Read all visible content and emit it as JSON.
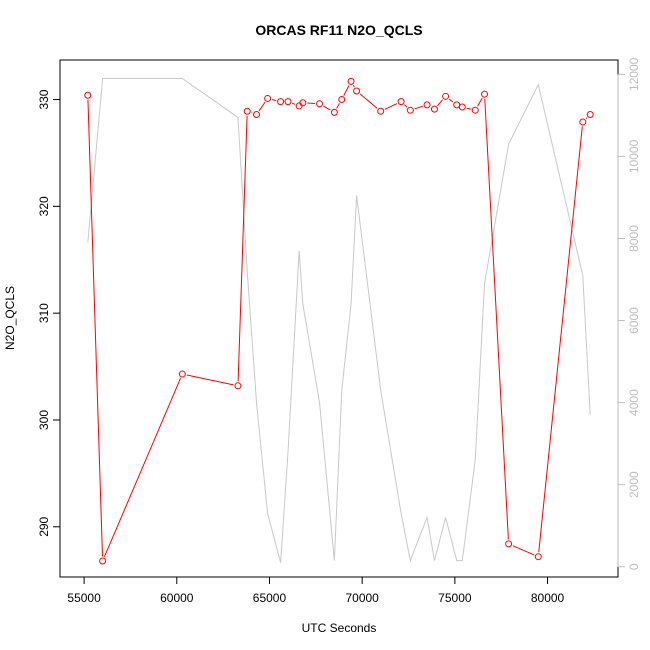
{
  "chart_data": {
    "type": "line",
    "title": "ORCAS RF11 N2O_QCLS",
    "xlabel": "UTC Seconds",
    "ylabel": "N2O_QCLS",
    "x_ticks": [
      55000,
      60000,
      65000,
      70000,
      75000,
      80000
    ],
    "y_ticks": [
      290,
      300,
      310,
      320,
      330
    ],
    "y2_ticks": [
      0,
      2000,
      4000,
      6000,
      8000,
      10000,
      12000
    ],
    "xlim": [
      53700,
      83800
    ],
    "ylim": [
      285.3,
      333.7
    ],
    "y2lim": [
      -250,
      12350
    ],
    "series": [
      {
        "color": "#ff0000",
        "marker": "open-circle",
        "axis": "left",
        "x": [
          55200,
          56000,
          60300,
          63300,
          63800,
          64300,
          64900,
          65600,
          66000,
          66600,
          66800,
          67700,
          68500,
          68900,
          69400,
          69700,
          71000,
          72100,
          72600,
          73500,
          73900,
          74500,
          75100,
          75400,
          76100,
          76600,
          77900,
          79500,
          81900,
          82300
        ],
        "y": [
          330.4,
          286.8,
          304.3,
          303.2,
          328.9,
          328.6,
          330.1,
          329.8,
          329.8,
          329.4,
          329.7,
          329.6,
          328.8,
          330.0,
          331.7,
          330.8,
          328.9,
          329.8,
          329.0,
          329.5,
          329.1,
          330.3,
          329.5,
          329.3,
          329.0,
          330.5,
          288.4,
          287.2,
          327.9,
          328.6
        ]
      },
      {
        "color": "#c8c8c8",
        "marker": "none",
        "axis": "right",
        "x": [
          55200,
          56000,
          60300,
          63300,
          63800,
          64300,
          64900,
          65600,
          66000,
          66600,
          66800,
          67700,
          68500,
          68900,
          69400,
          69700,
          71000,
          72100,
          72600,
          73500,
          73900,
          74500,
          75100,
          75400,
          76100,
          76600,
          77900,
          79500,
          81900,
          82300
        ],
        "y": [
          7900,
          11900,
          11900,
          10950,
          7200,
          4000,
          1300,
          100,
          2800,
          7700,
          6400,
          4000,
          150,
          4300,
          6400,
          9050,
          4300,
          1300,
          150,
          1200,
          150,
          1200,
          150,
          150,
          2600,
          6900,
          10300,
          11750,
          7100,
          3700
        ]
      }
    ]
  }
}
